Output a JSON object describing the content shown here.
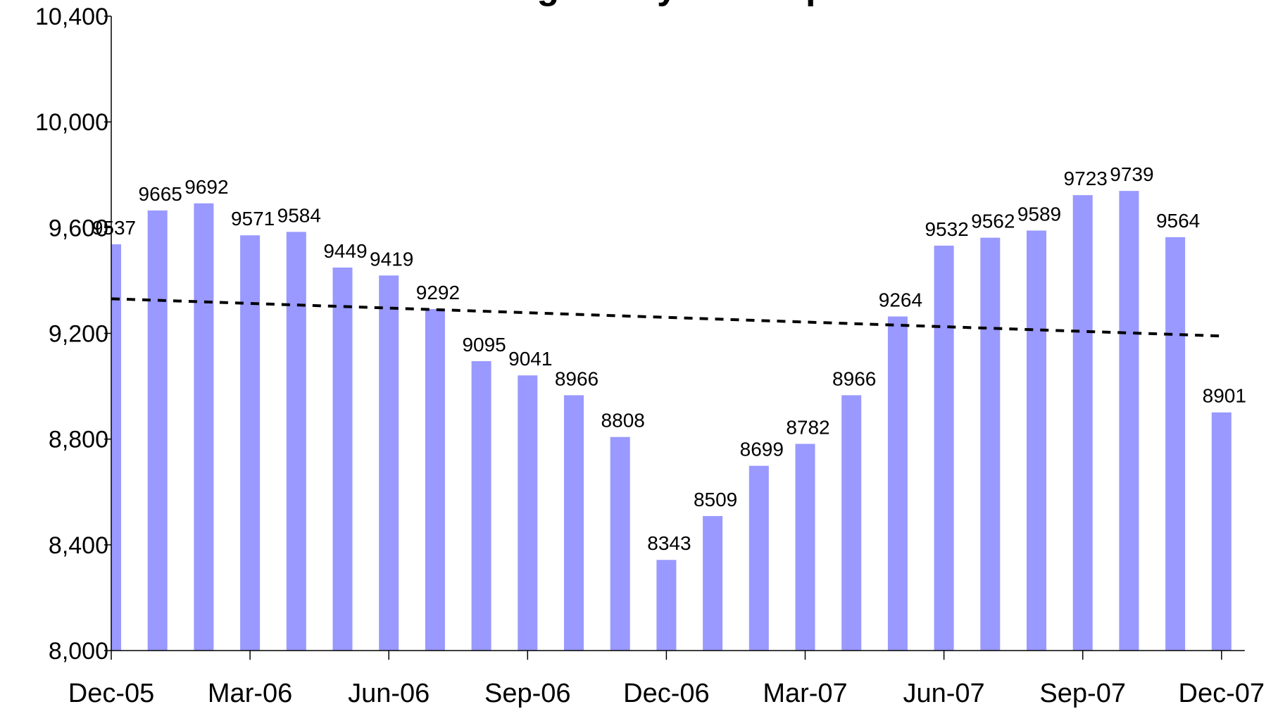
{
  "chart_data": {
    "type": "bar",
    "title": "Average Daily Jail Population",
    "categories": [
      "Dec-05",
      null,
      null,
      "Mar-06",
      null,
      null,
      "Jun-06",
      null,
      null,
      "Sep-06",
      null,
      null,
      "Dec-06",
      null,
      null,
      "Mar-07",
      null,
      null,
      "Jun-07",
      null,
      null,
      "Sep-07",
      null,
      null,
      "Dec-07"
    ],
    "values": [
      9537,
      9665,
      9692,
      9571,
      9584,
      9449,
      9419,
      9292,
      9095,
      9041,
      8966,
      8808,
      8343,
      8509,
      8699,
      8782,
      8966,
      9264,
      9532,
      9562,
      9589,
      9723,
      9739,
      9564,
      8901
    ],
    "color": "#9999ff",
    "trend": {
      "values": [
        9331,
        9190
      ],
      "color": "#000000"
    },
    "ylim": [
      8000,
      10400
    ],
    "yticks": [
      {
        "value": 8000,
        "label": "8,000"
      },
      {
        "value": 8400,
        "label": "8,400"
      },
      {
        "value": 8800,
        "label": "8,800"
      },
      {
        "value": 9200,
        "label": "9,200"
      },
      {
        "value": 9600,
        "label": "9,600"
      },
      {
        "value": 10000,
        "label": "10,000"
      },
      {
        "value": 10400,
        "label": "10,400"
      }
    ],
    "grid": false
  }
}
